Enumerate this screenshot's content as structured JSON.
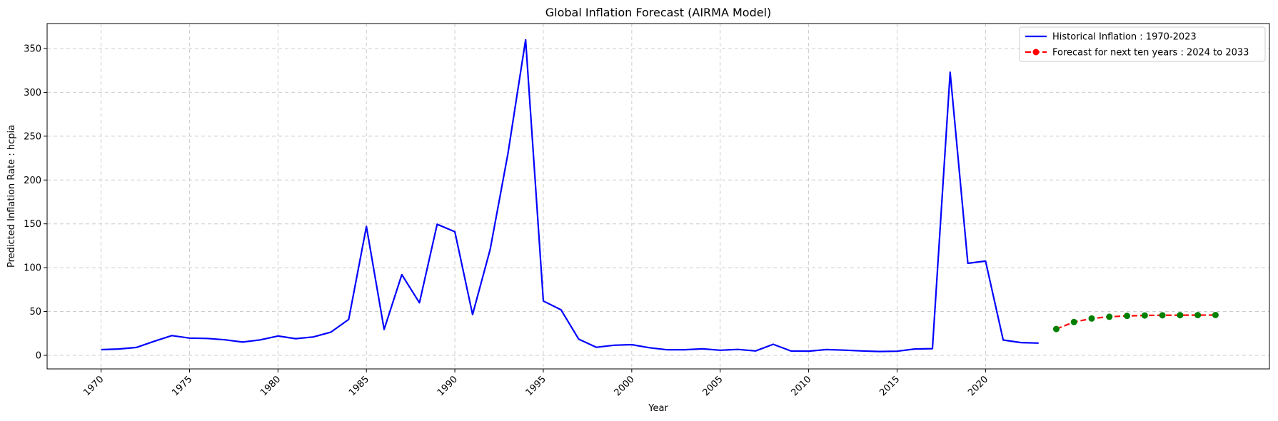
{
  "chart_data": {
    "type": "line",
    "title": "Global Inflation Forecast (AIRMA Model)",
    "xlabel": "Year",
    "ylabel": "Predicted Inflation Rate : hcpia",
    "xlim": [
      1966.95,
      2036.05
    ],
    "ylim": [
      -15.5,
      378.5
    ],
    "x_ticks": [
      1970,
      1975,
      1980,
      1985,
      1990,
      1995,
      2000,
      2005,
      2010,
      2015,
      2020
    ],
    "y_ticks": [
      0,
      50,
      100,
      150,
      200,
      250,
      300,
      350
    ],
    "grid": true,
    "legend_position": "top-right",
    "series": [
      {
        "name": "Historical Inflation : 1970-2023",
        "color": "#0000ff",
        "style": "solid",
        "x": [
          1970,
          1971,
          1972,
          1973,
          1974,
          1975,
          1976,
          1977,
          1978,
          1979,
          1980,
          1981,
          1982,
          1983,
          1984,
          1985,
          1986,
          1987,
          1988,
          1989,
          1990,
          1991,
          1992,
          1993,
          1994,
          1995,
          1996,
          1997,
          1998,
          1999,
          2000,
          2001,
          2002,
          2003,
          2004,
          2005,
          2006,
          2007,
          2008,
          2009,
          2010,
          2011,
          2012,
          2013,
          2014,
          2015,
          2016,
          2017,
          2018,
          2019,
          2020,
          2021,
          2022,
          2023
        ],
        "y": [
          6.5,
          7.2,
          9.0,
          16.0,
          22.5,
          19.7,
          19.3,
          17.7,
          15.1,
          17.6,
          22.0,
          19.0,
          21.0,
          26.5,
          41.0,
          147.0,
          29.5,
          92.0,
          60.0,
          149.5,
          141.0,
          46.5,
          121.0,
          230.0,
          360.0,
          62.0,
          52.0,
          18.5,
          9.2,
          11.5,
          12.2,
          8.7,
          6.3,
          6.4,
          7.4,
          5.8,
          6.7,
          5.0,
          12.6,
          4.9,
          4.8,
          6.6,
          5.9,
          5.0,
          4.4,
          4.7,
          7.2,
          7.6,
          323.0,
          105.0,
          107.5,
          17.5,
          14.5,
          14.0
        ]
      },
      {
        "name": "Forecast for next ten years : 2024 to 2033",
        "color": "#ff0000",
        "marker_color": "#008000",
        "style": "dashed",
        "x": [
          2024,
          2025,
          2026,
          2027,
          2028,
          2029,
          2030,
          2031,
          2032,
          2033
        ],
        "y": [
          30.0,
          38.0,
          42.0,
          44.0,
          45.0,
          45.5,
          45.7,
          45.8,
          45.9,
          46.0
        ]
      }
    ]
  }
}
